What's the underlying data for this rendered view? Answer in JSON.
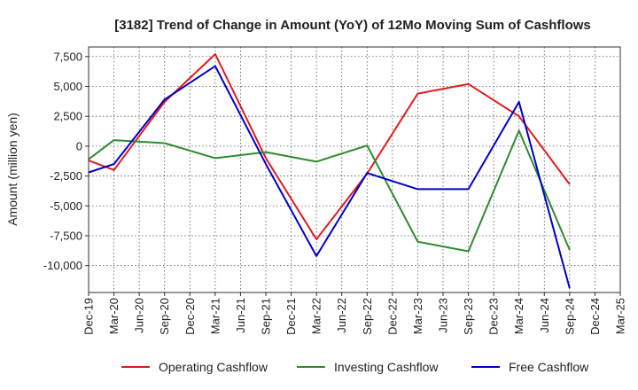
{
  "chart_data": {
    "type": "line",
    "title": "[3182]  Trend of Change in Amount (YoY) of 12Mo Moving Sum of Cashflows",
    "xlabel": "",
    "ylabel": "Amount (million yen)",
    "categories": [
      "Dec-19",
      "Mar-20",
      "Jun-20",
      "Sep-20",
      "Dec-20",
      "Mar-21",
      "Jun-21",
      "Sep-21",
      "Dec-21",
      "Mar-22",
      "Jun-22",
      "Sep-22",
      "Dec-22",
      "Mar-23",
      "Jun-23",
      "Sep-23",
      "Dec-23",
      "Mar-24",
      "Jun-24",
      "Sep-24",
      "Dec-24",
      "Mar-25"
    ],
    "ylim": [
      -12250,
      8300
    ],
    "yticks": [
      7500,
      5000,
      2500,
      0,
      -2500,
      -5000,
      -7500,
      -10000
    ],
    "ytick_labels": [
      "7,500",
      "5,000",
      "2,500",
      "0",
      "-2,500",
      "-5,000",
      "-7,500",
      "-10,000"
    ],
    "grid": true,
    "legend_position": "bottom",
    "series": [
      {
        "name": "Operating Cashflow",
        "color": "#e31a1c",
        "values": [
          -1200,
          -2000,
          null,
          3700,
          null,
          7700,
          null,
          -1000,
          null,
          -7800,
          null,
          -2300,
          null,
          4400,
          null,
          5200,
          null,
          2500,
          null,
          -3200,
          null,
          null
        ]
      },
      {
        "name": "Investing Cashflow",
        "color": "#2e8b2e",
        "values": [
          -1100,
          500,
          null,
          250,
          null,
          -1000,
          null,
          -500,
          null,
          -1300,
          null,
          50,
          null,
          -8000,
          null,
          -8800,
          null,
          1300,
          null,
          -8700,
          null,
          null
        ]
      },
      {
        "name": "Free Cashflow",
        "color": "#0000cc",
        "values": [
          -2200,
          -1500,
          null,
          3900,
          null,
          6700,
          null,
          -1500,
          null,
          -9200,
          null,
          -2250,
          null,
          -3600,
          null,
          -3600,
          null,
          3700,
          null,
          -11900,
          null,
          null
        ]
      }
    ]
  }
}
